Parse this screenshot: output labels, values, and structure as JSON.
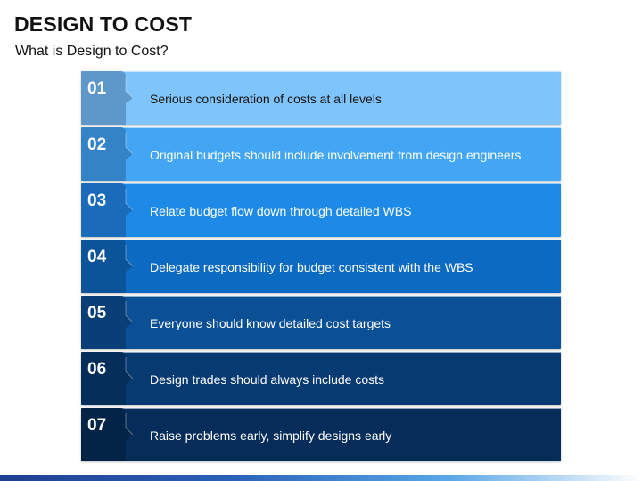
{
  "title": "DESIGN TO COST",
  "subtitle": "What is Design to Cost?",
  "steps": [
    {
      "number": "01",
      "text": "Serious consideration of costs at all levels",
      "color": "#7fc4fb",
      "tab_color": "#5e97c9",
      "text_color": "#111111"
    },
    {
      "number": "02",
      "text": "Original budgets should include involvement from design engineers",
      "color": "#42a6f5",
      "tab_color": "#3483c7",
      "text_color": "#ffffff"
    },
    {
      "number": "03",
      "text": "Relate budget flow down through detailed WBS",
      "color": "#1e8ae7",
      "tab_color": "#1a6cba",
      "text_color": "#ffffff"
    },
    {
      "number": "04",
      "text": "Delegate responsibility for budget consistent with the WBS",
      "color": "#0d6ac2",
      "tab_color": "#0b5499",
      "text_color": "#ffffff"
    },
    {
      "number": "05",
      "text": "Everyone should know detailed cost targets",
      "color": "#0b4f95",
      "tab_color": "#093f76",
      "text_color": "#ffffff"
    },
    {
      "number": "06",
      "text": "Design trades should always include costs",
      "color": "#083a72",
      "tab_color": "#062e5a",
      "text_color": "#ffffff"
    },
    {
      "number": "07",
      "text": "Raise problems early, simplify designs early",
      "color": "#062d59",
      "tab_color": "#042447",
      "text_color": "#ffffff"
    }
  ]
}
